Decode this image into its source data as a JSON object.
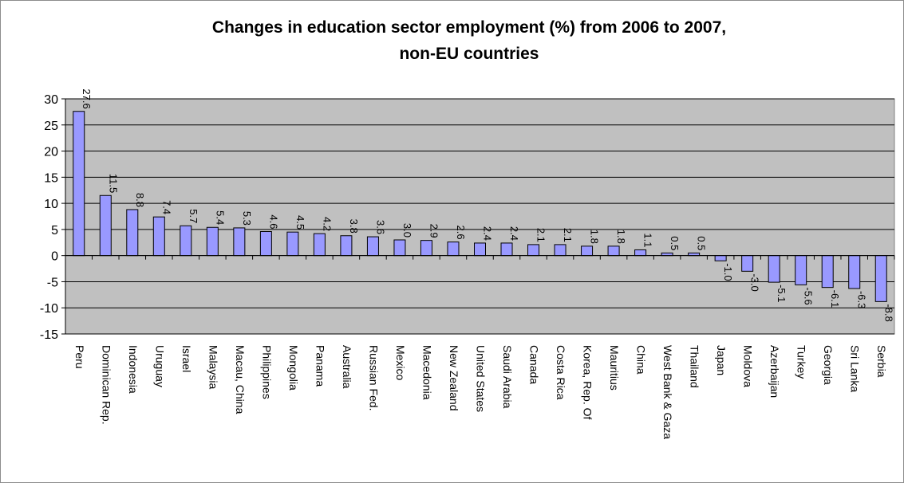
{
  "chart_data": {
    "type": "bar",
    "title": "Changes in education sector employment (%) from 2006 to 2007,",
    "subtitle": "non-EU countries",
    "xlabel": "",
    "ylabel": "",
    "ylim": [
      -15,
      30
    ],
    "yticks": [
      "30",
      "25",
      "20",
      "15",
      "10",
      "5",
      "0",
      "-5",
      "-10",
      "-15"
    ],
    "grid": true,
    "colors": {
      "bar": "#9999ff",
      "plot_bg": "#c0c0c0",
      "grid": "#000000"
    },
    "categories": [
      "Peru",
      "Dominican Rep.",
      "Indonesia",
      "Uruguay",
      "Israel",
      "Malaysia",
      "Macau, China",
      "Philippines",
      "Mongolia",
      "Panama",
      "Australia",
      "Russian Fed.",
      "Mexico",
      "Macedonia",
      "New Zealand",
      "United States",
      "Saudi Arabia",
      "Canada",
      "Costa Rica",
      "Korea, Rep. Of",
      "Mauritius",
      "China",
      "West Bank & Gaza",
      "Thailand",
      "Japan",
      "Moldova",
      "Azerbaijan",
      "Turkey",
      "Georgia",
      "Sri Lanka",
      "Serbia"
    ],
    "values": [
      27.6,
      11.5,
      8.8,
      7.4,
      5.7,
      5.4,
      5.3,
      4.6,
      4.5,
      4.2,
      3.8,
      3.6,
      3.0,
      2.9,
      2.6,
      2.4,
      2.4,
      2.1,
      2.1,
      1.8,
      1.8,
      1.1,
      0.5,
      0.5,
      -1.0,
      -3.0,
      -5.1,
      -5.6,
      -6.1,
      -6.3,
      -8.8
    ],
    "data_labels": [
      "27.6",
      "11.5",
      "8.8",
      "7.4",
      "5.7",
      "5.4",
      "5.3",
      "4.6",
      "4.5",
      "4.2",
      "3.8",
      "3.6",
      "3.0",
      "2.9",
      "2.6",
      "2.4",
      "2.4",
      "2.1",
      "2.1",
      "1.8",
      "1.8",
      "1.1",
      "0.5",
      "0.5",
      "-1.0",
      "-3.0",
      "-5.1",
      "-5.6",
      "-6.1",
      "-6.3",
      "-8.8"
    ]
  }
}
